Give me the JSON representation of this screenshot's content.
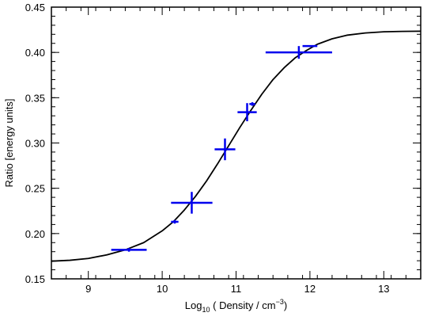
{
  "chart_data": {
    "type": "scatter",
    "title": "",
    "xlabel": {
      "prefix": "Log",
      "subscript": "10",
      "middle": " ( Density / cm",
      "superscript": "−3",
      "suffix": ")"
    },
    "ylabel": "Ratio [energy units]",
    "xlim": [
      8.5,
      13.5
    ],
    "ylim": [
      0.15,
      0.45
    ],
    "x_major_ticks": [
      9,
      10,
      11,
      12,
      13
    ],
    "x_tick_labels": [
      "9",
      "10",
      "11",
      "12",
      "13"
    ],
    "y_major_ticks": [
      0.15,
      0.2,
      0.25,
      0.3,
      0.35,
      0.4,
      0.45
    ],
    "y_tick_labels": [
      "0.15",
      "0.20",
      "0.25",
      "0.30",
      "0.35",
      "0.40",
      "0.45"
    ],
    "x_minor_step": 0.2,
    "y_minor_step": 0.01,
    "grid": false,
    "legend": false,
    "colors": {
      "curve": "#000000",
      "points": "#0000ee",
      "axes": "#000000"
    },
    "curve": {
      "name": "",
      "x": [
        8.5,
        8.75,
        9.0,
        9.25,
        9.5,
        9.75,
        10.0,
        10.15,
        10.3,
        10.45,
        10.6,
        10.75,
        10.9,
        11.05,
        11.2,
        11.35,
        11.5,
        11.65,
        11.8,
        11.95,
        12.1,
        12.3,
        12.5,
        12.75,
        13.0,
        13.25,
        13.5
      ],
      "y": [
        0.1695,
        0.1705,
        0.1725,
        0.1765,
        0.182,
        0.19,
        0.203,
        0.213,
        0.226,
        0.241,
        0.258,
        0.277,
        0.297,
        0.317,
        0.336,
        0.354,
        0.37,
        0.383,
        0.394,
        0.402,
        0.409,
        0.415,
        0.419,
        0.4215,
        0.4228,
        0.4232,
        0.4234
      ]
    },
    "series": [
      {
        "name": "",
        "points": [
          {
            "x": 9.55,
            "y": 0.182,
            "xerr": 0.24,
            "yerr": 0.002
          },
          {
            "x": 10.17,
            "y": 0.213,
            "xerr": 0.05,
            "yerr": 0.002
          },
          {
            "x": 10.4,
            "y": 0.234,
            "xerr": 0.28,
            "yerr": 0.012
          },
          {
            "x": 10.85,
            "y": 0.293,
            "xerr": 0.14,
            "yerr": 0.012
          },
          {
            "x": 11.15,
            "y": 0.334,
            "xerr": 0.13,
            "yerr": 0.01
          },
          {
            "x": 11.22,
            "y": 0.343,
            "xerr": 0.04,
            "yerr": 0.002
          },
          {
            "x": 11.85,
            "y": 0.4,
            "xerr": 0.45,
            "yerr": 0.007
          },
          {
            "x": 12.0,
            "y": 0.407,
            "xerr": 0.1,
            "yerr": 0.001
          }
        ]
      }
    ]
  }
}
